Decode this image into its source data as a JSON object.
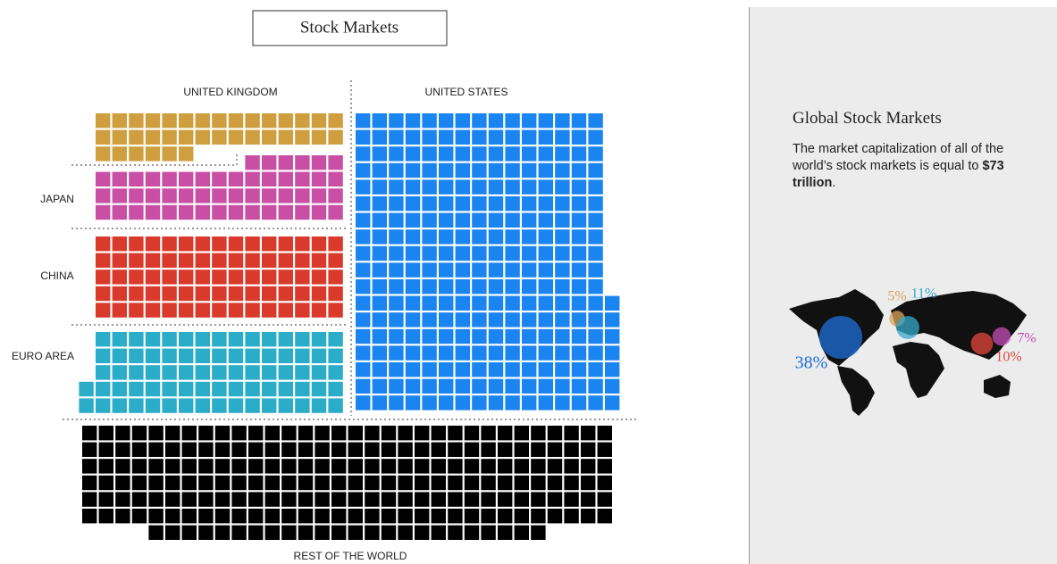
{
  "chart_data": {
    "type": "waffle",
    "title": "Stock Markets",
    "categories": [
      "UNITED KINGDOM",
      "JAPAN",
      "CHINA",
      "EURO AREA",
      "UNITED STATES",
      "REST OF THE WORLD"
    ],
    "values": [
      36,
      51,
      75,
      77,
      277,
      216
    ],
    "colors": [
      "#cf9f3f",
      "#c94fa5",
      "#d93a2b",
      "#2badc9",
      "#1a84f0",
      "#000000"
    ]
  },
  "panel": {
    "title": "Global Stock Markets",
    "text": "The market capitalization of all of the world’s stock markets is equal to ",
    "emphasis": "$73 trillion",
    "text_end": ".",
    "map_labels": [
      {
        "value": 38,
        "label": "38%",
        "color": "#1e6fd9"
      },
      {
        "value": 5,
        "label": "5%",
        "color": "#d9a45b"
      },
      {
        "value": 11,
        "label": "11%",
        "color": "#35a9c9"
      },
      {
        "value": 10,
        "label": "10%",
        "color": "#e0453a"
      },
      {
        "value": 7,
        "label": "7%",
        "color": "#c44fb5"
      }
    ]
  }
}
